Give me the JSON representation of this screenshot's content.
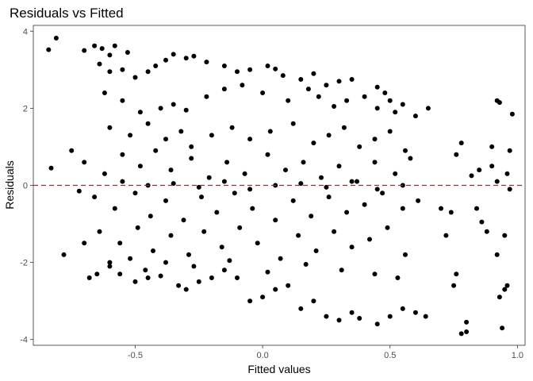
{
  "chart_data": {
    "type": "scatter",
    "title": "Residuals vs Fitted",
    "xlabel": "Fitted values",
    "ylabel": "Residuals",
    "xlim": [
      -0.9,
      1.03
    ],
    "ylim": [
      -4.15,
      4.15
    ],
    "x_ticks": [
      -0.5,
      0.0,
      0.5,
      1.0
    ],
    "x_tick_labels": [
      "-0.5",
      "0.0",
      "0.5",
      "1.0"
    ],
    "y_ticks": [
      -4,
      -2,
      0,
      2,
      4
    ],
    "y_tick_labels": [
      "-4",
      "-2",
      "0",
      "2",
      "4"
    ],
    "grid": false,
    "reference_line": {
      "y": 0,
      "style": "dashed",
      "color": "#ff0000"
    },
    "point_color": "#000000",
    "points": [
      [
        -0.84,
        3.52
      ],
      [
        -0.81,
        3.82
      ],
      [
        -0.7,
        3.5
      ],
      [
        -0.66,
        3.62
      ],
      [
        -0.63,
        3.55
      ],
      [
        -0.6,
        3.38
      ],
      [
        -0.58,
        3.62
      ],
      [
        -0.53,
        3.45
      ],
      [
        -0.64,
        3.15
      ],
      [
        -0.6,
        2.95
      ],
      [
        -0.55,
        3.0
      ],
      [
        -0.5,
        2.8
      ],
      [
        -0.45,
        2.95
      ],
      [
        -0.42,
        3.1
      ],
      [
        -0.38,
        3.25
      ],
      [
        -0.35,
        3.4
      ],
      [
        -0.3,
        3.3
      ],
      [
        -0.27,
        3.35
      ],
      [
        -0.22,
        3.2
      ],
      [
        -0.15,
        3.1
      ],
      [
        -0.1,
        2.95
      ],
      [
        -0.05,
        3.0
      ],
      [
        0.02,
        3.1
      ],
      [
        0.05,
        3.02
      ],
      [
        0.08,
        2.85
      ],
      [
        0.15,
        2.75
      ],
      [
        0.2,
        2.9
      ],
      [
        0.25,
        2.6
      ],
      [
        0.3,
        2.7
      ],
      [
        0.35,
        2.75
      ],
      [
        0.45,
        2.55
      ],
      [
        0.48,
        2.4
      ],
      [
        0.5,
        2.2
      ],
      [
        0.55,
        2.1
      ],
      [
        0.6,
        1.8
      ],
      [
        0.65,
        2.0
      ],
      [
        -0.83,
        0.45
      ],
      [
        -0.75,
        0.9
      ],
      [
        -0.72,
        -0.15
      ],
      [
        -0.78,
        -1.8
      ],
      [
        -0.7,
        -1.5
      ],
      [
        -0.68,
        -2.4
      ],
      [
        -0.65,
        -2.3
      ],
      [
        -0.6,
        -2.1
      ],
      [
        -0.56,
        -2.3
      ],
      [
        -0.5,
        -2.5
      ],
      [
        -0.45,
        -2.4
      ],
      [
        -0.4,
        -2.35
      ],
      [
        -0.33,
        -2.6
      ],
      [
        -0.3,
        -2.7
      ],
      [
        -0.25,
        -2.5
      ],
      [
        -0.2,
        -2.4
      ],
      [
        -0.15,
        -2.2
      ],
      [
        -0.1,
        -2.4
      ],
      [
        -0.05,
        -3.0
      ],
      [
        0.0,
        -2.9
      ],
      [
        0.05,
        -2.7
      ],
      [
        0.1,
        -2.6
      ],
      [
        0.15,
        -3.2
      ],
      [
        0.2,
        -3.0
      ],
      [
        0.25,
        -3.4
      ],
      [
        0.3,
        -3.5
      ],
      [
        0.35,
        -3.3
      ],
      [
        0.38,
        -3.45
      ],
      [
        0.45,
        -3.6
      ],
      [
        0.5,
        -3.4
      ],
      [
        0.55,
        -3.2
      ],
      [
        0.6,
        -3.3
      ],
      [
        0.64,
        -3.4
      ],
      [
        0.72,
        -1.3
      ],
      [
        0.74,
        -0.7
      ],
      [
        0.76,
        0.8
      ],
      [
        0.78,
        1.1
      ],
      [
        0.7,
        -0.6
      ],
      [
        0.75,
        -2.6
      ],
      [
        0.76,
        -2.3
      ],
      [
        0.78,
        -3.85
      ],
      [
        0.8,
        -3.55
      ],
      [
        0.8,
        -3.8
      ],
      [
        0.82,
        0.25
      ],
      [
        0.84,
        -0.6
      ],
      [
        0.85,
        0.4
      ],
      [
        0.86,
        -0.95
      ],
      [
        0.88,
        -1.2
      ],
      [
        0.9,
        0.5
      ],
      [
        0.9,
        1.0
      ],
      [
        0.92,
        2.2
      ],
      [
        0.93,
        2.15
      ],
      [
        0.92,
        -1.8
      ],
      [
        0.93,
        -2.9
      ],
      [
        0.94,
        -3.7
      ],
      [
        0.95,
        -2.7
      ],
      [
        0.96,
        -2.6
      ],
      [
        0.95,
        -1.3
      ],
      [
        0.97,
        0.9
      ],
      [
        0.98,
        1.85
      ],
      [
        0.97,
        -0.1
      ],
      [
        0.92,
        0.1
      ],
      [
        0.96,
        0.3
      ],
      [
        -0.62,
        2.4
      ],
      [
        -0.55,
        2.2
      ],
      [
        -0.48,
        1.9
      ],
      [
        -0.4,
        2.0
      ],
      [
        -0.35,
        2.1
      ],
      [
        -0.3,
        1.95
      ],
      [
        -0.22,
        2.3
      ],
      [
        -0.15,
        2.5
      ],
      [
        -0.08,
        2.6
      ],
      [
        0.0,
        2.4
      ],
      [
        0.1,
        2.2
      ],
      [
        0.18,
        2.5
      ],
      [
        0.22,
        2.3
      ],
      [
        0.28,
        2.05
      ],
      [
        0.33,
        2.2
      ],
      [
        0.4,
        2.3
      ],
      [
        0.45,
        2.0
      ],
      [
        0.52,
        1.9
      ],
      [
        -0.6,
        1.5
      ],
      [
        -0.52,
        1.3
      ],
      [
        -0.45,
        1.6
      ],
      [
        -0.38,
        1.2
      ],
      [
        -0.32,
        1.4
      ],
      [
        -0.28,
        1.0
      ],
      [
        -0.2,
        1.3
      ],
      [
        -0.12,
        1.5
      ],
      [
        -0.05,
        1.2
      ],
      [
        0.03,
        1.4
      ],
      [
        0.12,
        1.6
      ],
      [
        0.2,
        1.1
      ],
      [
        0.26,
        1.3
      ],
      [
        0.32,
        1.5
      ],
      [
        0.38,
        1.0
      ],
      [
        0.44,
        1.2
      ],
      [
        0.5,
        1.4
      ],
      [
        0.56,
        0.9
      ],
      [
        -0.7,
        0.6
      ],
      [
        -0.62,
        0.3
      ],
      [
        -0.55,
        0.8
      ],
      [
        -0.48,
        0.5
      ],
      [
        -0.42,
        0.9
      ],
      [
        -0.36,
        0.4
      ],
      [
        -0.28,
        0.7
      ],
      [
        -0.21,
        0.2
      ],
      [
        -0.14,
        0.6
      ],
      [
        -0.07,
        0.3
      ],
      [
        0.02,
        0.8
      ],
      [
        0.09,
        0.4
      ],
      [
        0.16,
        0.6
      ],
      [
        0.23,
        0.2
      ],
      [
        0.3,
        0.5
      ],
      [
        0.37,
        0.1
      ],
      [
        0.44,
        0.6
      ],
      [
        0.52,
        0.3
      ],
      [
        0.58,
        0.7
      ],
      [
        -0.66,
        -0.3
      ],
      [
        -0.58,
        -0.6
      ],
      [
        -0.5,
        -0.2
      ],
      [
        -0.44,
        -0.8
      ],
      [
        -0.38,
        -0.4
      ],
      [
        -0.31,
        -0.9
      ],
      [
        -0.24,
        -0.3
      ],
      [
        -0.18,
        -0.7
      ],
      [
        -0.11,
        -0.2
      ],
      [
        -0.04,
        -0.6
      ],
      [
        0.05,
        -0.9
      ],
      [
        0.12,
        -0.4
      ],
      [
        0.19,
        -0.8
      ],
      [
        0.26,
        -0.3
      ],
      [
        0.33,
        -0.7
      ],
      [
        0.4,
        -0.5
      ],
      [
        0.47,
        -0.2
      ],
      [
        0.55,
        -0.6
      ],
      [
        0.61,
        -0.4
      ],
      [
        -0.64,
        -1.2
      ],
      [
        -0.56,
        -1.5
      ],
      [
        -0.49,
        -1.1
      ],
      [
        -0.43,
        -1.7
      ],
      [
        -0.36,
        -1.3
      ],
      [
        -0.29,
        -1.8
      ],
      [
        -0.23,
        -1.2
      ],
      [
        -0.16,
        -1.6
      ],
      [
        -0.09,
        -1.1
      ],
      [
        -0.02,
        -1.5
      ],
      [
        0.07,
        -1.9
      ],
      [
        0.14,
        -1.3
      ],
      [
        0.21,
        -1.7
      ],
      [
        0.28,
        -1.2
      ],
      [
        0.35,
        -1.6
      ],
      [
        0.42,
        -1.4
      ],
      [
        0.49,
        -1.1
      ],
      [
        0.56,
        -1.8
      ],
      [
        -0.6,
        -2.0
      ],
      [
        -0.52,
        -1.9
      ],
      [
        -0.46,
        -2.2
      ],
      [
        -0.38,
        -2.0
      ],
      [
        -0.27,
        -2.1
      ],
      [
        -0.13,
        -1.95
      ],
      [
        0.02,
        -2.25
      ],
      [
        0.17,
        -2.05
      ],
      [
        0.31,
        -2.2
      ],
      [
        0.44,
        -2.3
      ],
      [
        0.53,
        -2.4
      ],
      [
        -0.55,
        0.1
      ],
      [
        -0.45,
        0.0
      ],
      [
        -0.35,
        0.05
      ],
      [
        -0.25,
        -0.05
      ],
      [
        -0.15,
        0.1
      ],
      [
        -0.05,
        -0.1
      ],
      [
        0.05,
        0.0
      ],
      [
        0.15,
        0.05
      ],
      [
        0.25,
        -0.05
      ],
      [
        0.35,
        0.1
      ],
      [
        0.45,
        -0.1
      ],
      [
        0.55,
        0.0
      ]
    ]
  }
}
